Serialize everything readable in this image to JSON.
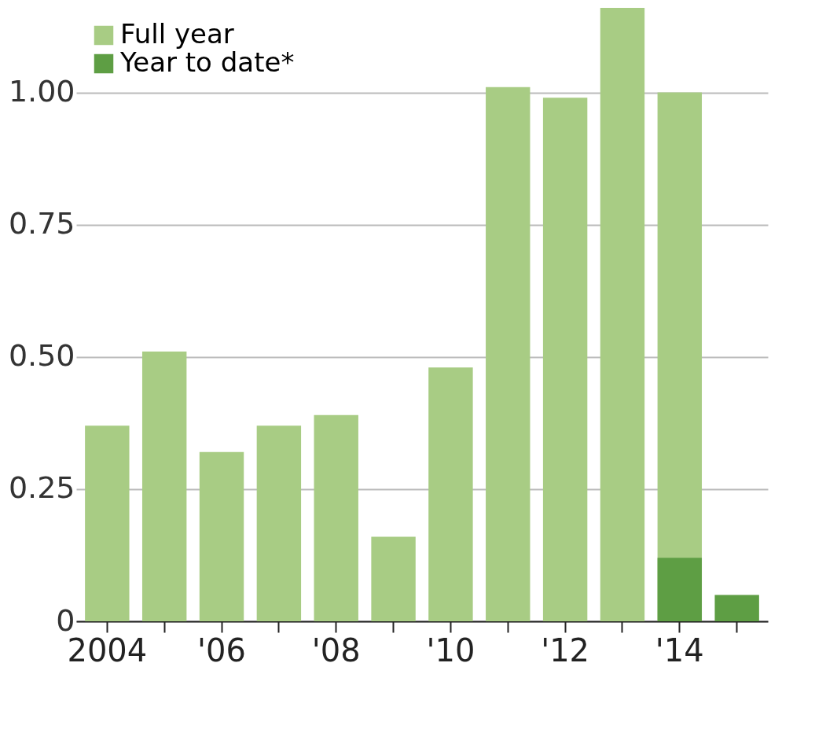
{
  "chart_data": {
    "type": "bar",
    "categories": [
      "2004",
      null,
      "'06",
      null,
      "'08",
      null,
      "'10",
      null,
      "'12",
      null,
      "'14",
      null
    ],
    "series": [
      {
        "name": "Full year",
        "color": "#a8cc84",
        "values": [
          0.37,
          0.51,
          0.32,
          0.37,
          0.39,
          0.16,
          0.48,
          1.01,
          0.99,
          1.16,
          1.0,
          null
        ]
      },
      {
        "name": "Year to date*",
        "color": "#5e9e44",
        "values": [
          null,
          null,
          null,
          null,
          null,
          null,
          null,
          null,
          null,
          null,
          0.12,
          0.05
        ]
      }
    ],
    "ylim": [
      0,
      1.16
    ],
    "yticks": [
      0,
      {
        "value": 0.25,
        "label": "0.25"
      },
      {
        "value": 0.5,
        "label": "0.50"
      },
      {
        "value": 0.75,
        "label": "0.75"
      },
      {
        "value": 1,
        "label": "1.00"
      }
    ],
    "grid": "y",
    "legend": "top left"
  }
}
